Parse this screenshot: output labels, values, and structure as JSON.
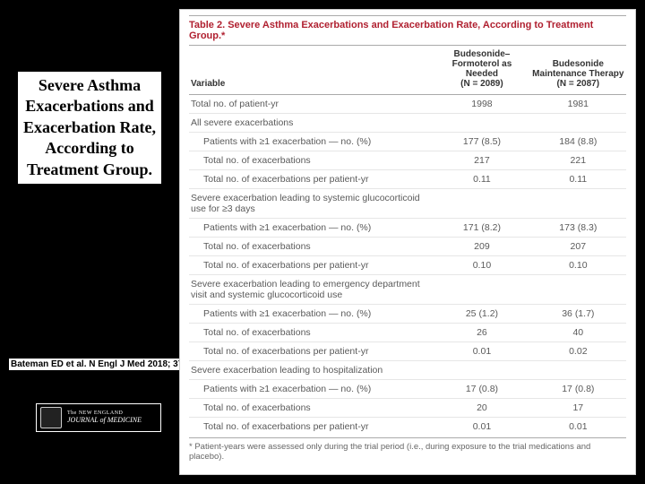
{
  "slide": {
    "title": "Severe Asthma Exacerbations and Exacerbation Rate, According to Treatment Group.",
    "citation": "Bateman ED et al. N Engl J Med 2018; 37",
    "logo_line1": "The NEW ENGLAND",
    "logo_line2": "JOURNAL of MEDICINE"
  },
  "table": {
    "caption": "Table 2. Severe Asthma Exacerbations and Exacerbation Rate, According to Treatment Group.*",
    "header": {
      "variable": "Variable",
      "col1_name": "Budesonide–Formoterol as Needed",
      "col1_n": "(N = 2089)",
      "col2_name": "Budesonide Maintenance Therapy",
      "col2_n": "(N = 2087)"
    },
    "rows": [
      {
        "label": "Total no. of patient-yr",
        "indent": 0,
        "c1": "1998",
        "c2": "1981"
      },
      {
        "label": "All severe exacerbations",
        "indent": 0,
        "c1": "",
        "c2": ""
      },
      {
        "label": "Patients with ≥1 exacerbation — no. (%)",
        "indent": 1,
        "c1": "177 (8.5)",
        "c2": "184 (8.8)"
      },
      {
        "label": "Total no. of exacerbations",
        "indent": 1,
        "c1": "217",
        "c2": "221"
      },
      {
        "label": "Total no. of exacerbations per patient-yr",
        "indent": 1,
        "c1": "0.11",
        "c2": "0.11"
      },
      {
        "label": "Severe exacerbation leading to systemic glucocorticoid use for ≥3 days",
        "indent": 0,
        "c1": "",
        "c2": ""
      },
      {
        "label": "Patients with ≥1 exacerbation — no. (%)",
        "indent": 1,
        "c1": "171 (8.2)",
        "c2": "173 (8.3)"
      },
      {
        "label": "Total no. of exacerbations",
        "indent": 1,
        "c1": "209",
        "c2": "207"
      },
      {
        "label": "Total no. of exacerbations per patient-yr",
        "indent": 1,
        "c1": "0.10",
        "c2": "0.10"
      },
      {
        "label": "Severe exacerbation leading to emergency department visit and systemic glucocorticoid use",
        "indent": 0,
        "c1": "",
        "c2": ""
      },
      {
        "label": "Patients with ≥1 exacerbation — no. (%)",
        "indent": 1,
        "c1": "25 (1.2)",
        "c2": "36 (1.7)"
      },
      {
        "label": "Total no. of exacerbations",
        "indent": 1,
        "c1": "26",
        "c2": "40"
      },
      {
        "label": "Total no. of exacerbations per patient-yr",
        "indent": 1,
        "c1": "0.01",
        "c2": "0.02"
      },
      {
        "label": "Severe exacerbation leading to hospitalization",
        "indent": 0,
        "c1": "",
        "c2": ""
      },
      {
        "label": "Patients with ≥1 exacerbation — no. (%)",
        "indent": 1,
        "c1": "17 (0.8)",
        "c2": "17 (0.8)"
      },
      {
        "label": "Total no. of exacerbations",
        "indent": 1,
        "c1": "20",
        "c2": "17"
      },
      {
        "label": "Total no. of exacerbations per patient-yr",
        "indent": 1,
        "c1": "0.01",
        "c2": "0.01"
      }
    ],
    "footnote": "* Patient-years were assessed only during the trial period (i.e., during exposure to the trial medications and placebo)."
  },
  "style": {
    "caption_color": "#b02030",
    "text_color": "#5a5a5a",
    "header_color": "#333333",
    "divider_color": "#e6e6e6"
  }
}
